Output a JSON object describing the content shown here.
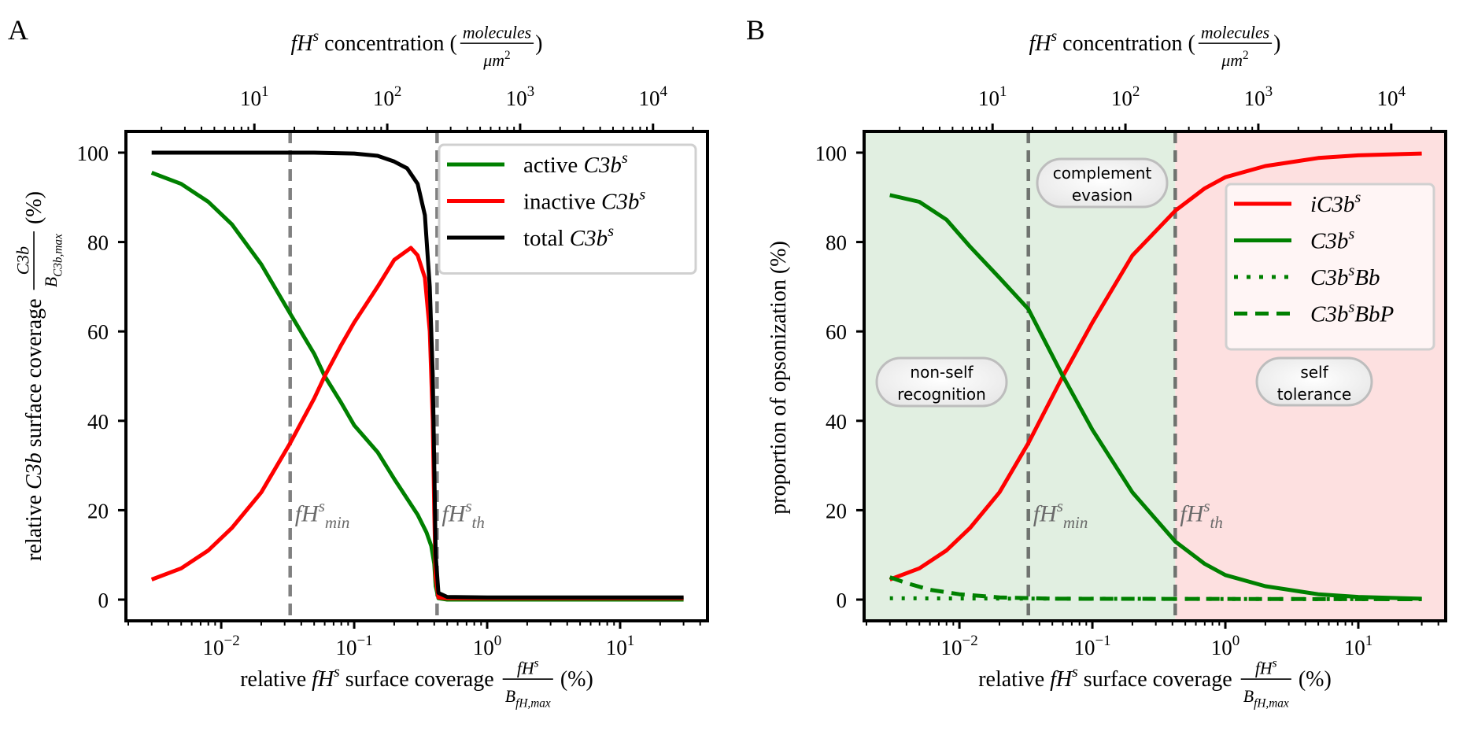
{
  "chart_data": [
    {
      "panel_label": "A",
      "type": "line",
      "xscale": "log",
      "xlim": [
        0.00192,
        45.4
      ],
      "ylim": [
        -4.75,
        104.75
      ],
      "top_xlim": [
        1.08,
        25700
      ],
      "grid": false,
      "legend_placement": "top-right",
      "top_xlabel": {
        "parts": [
          {
            "t": "fH",
            "i": true
          },
          {
            "t": "s",
            "i": true,
            "sup": true
          },
          {
            "t": " concentration ("
          }
        ],
        "frac": {
          "num": [
            {
              "t": "molecules",
              "i": true
            }
          ],
          "den": [
            {
              "t": "μm",
              "i": true
            },
            {
              "t": "2",
              "sup": true
            }
          ]
        },
        "after": [
          {
            "t": ")"
          }
        ]
      },
      "xlabel": {
        "parts": [
          {
            "t": "relative "
          },
          {
            "t": "fH",
            "i": true
          },
          {
            "t": "s",
            "i": true,
            "sup": true
          },
          {
            "t": " surface coverage "
          }
        ],
        "frac": {
          "num": [
            {
              "t": "fH",
              "i": true
            },
            {
              "t": "s",
              "i": true,
              "sup": true
            }
          ],
          "den": [
            {
              "t": "B",
              "i": true
            },
            {
              "t": "fH,max",
              "i": true,
              "sub": true
            }
          ]
        },
        "after": [
          {
            "t": " (%)"
          }
        ]
      },
      "ylabel": {
        "parts": [
          {
            "t": "relative "
          },
          {
            "t": "C3b",
            "i": true
          },
          {
            "t": " surface coverage "
          }
        ],
        "frac": {
          "num": [
            {
              "t": "C3b",
              "i": true
            }
          ],
          "den": [
            {
              "t": "B",
              "i": true
            },
            {
              "t": "C3b,max",
              "i": true,
              "sub": true
            }
          ]
        },
        "after": [
          {
            "t": " (%)"
          }
        ]
      },
      "xticks": [
        {
          "v": 0.01,
          "base": "10",
          "exp": "−2"
        },
        {
          "v": 0.1,
          "base": "10",
          "exp": "−1"
        },
        {
          "v": 1,
          "base": "10",
          "exp": "0"
        },
        {
          "v": 10,
          "base": "10",
          "exp": "1"
        }
      ],
      "top_xticks": [
        {
          "v": 10,
          "base": "10",
          "exp": "1"
        },
        {
          "v": 100,
          "base": "10",
          "exp": "2"
        },
        {
          "v": 1000,
          "base": "10",
          "exp": "3"
        },
        {
          "v": 10000,
          "base": "10",
          "exp": "4"
        }
      ],
      "yticks": [
        {
          "v": 0,
          "label": "0"
        },
        {
          "v": 20,
          "label": "20"
        },
        {
          "v": 40,
          "label": "40"
        },
        {
          "v": 60,
          "label": "60"
        },
        {
          "v": 80,
          "label": "80"
        },
        {
          "v": 100,
          "label": "100"
        }
      ],
      "vlines": [
        {
          "x": 0.033,
          "color": "#808080",
          "label": [
            {
              "t": "fH",
              "i": true
            },
            {
              "t": "s",
              "i": true,
              "sup": true
            },
            {
              "t": "min",
              "i": true,
              "sub": true
            }
          ]
        },
        {
          "x": 0.42,
          "color": "#808080",
          "label": [
            {
              "t": "fH",
              "i": true
            },
            {
              "t": "s",
              "i": true,
              "sup": true
            },
            {
              "t": "th",
              "i": true,
              "sub": true
            }
          ]
        }
      ],
      "regions": [],
      "region_labels": [],
      "series": [
        {
          "name": [
            {
              "t": "active "
            },
            {
              "t": "C3b",
              "i": true
            },
            {
              "t": "s",
              "i": true,
              "sup": true
            }
          ],
          "color": "#008000",
          "style": "solid",
          "x": [
            0.003,
            0.005,
            0.008,
            0.012,
            0.02,
            0.033,
            0.05,
            0.06,
            0.08,
            0.1,
            0.15,
            0.2,
            0.3,
            0.35,
            0.38,
            0.4,
            0.41,
            0.43,
            0.5,
            1,
            5,
            30
          ],
          "y": [
            95.5,
            93,
            89,
            84,
            75,
            64,
            55,
            50,
            44,
            39,
            33,
            27,
            19,
            15,
            12,
            8,
            3,
            0.3,
            0,
            0,
            0,
            0
          ]
        },
        {
          "name": [
            {
              "t": "inactive "
            },
            {
              "t": "C3b",
              "i": true
            },
            {
              "t": "s",
              "i": true,
              "sup": true
            }
          ],
          "color": "#ff0000",
          "style": "solid",
          "x": [
            0.003,
            0.005,
            0.008,
            0.012,
            0.02,
            0.033,
            0.05,
            0.06,
            0.08,
            0.1,
            0.15,
            0.2,
            0.267,
            0.3,
            0.34,
            0.37,
            0.39,
            0.4,
            0.41,
            0.43,
            0.5,
            30
          ],
          "y": [
            4.5,
            7,
            11,
            16,
            24,
            35,
            45,
            50,
            57,
            62,
            70,
            76,
            78.7,
            77,
            72,
            60,
            40,
            20,
            5,
            0.5,
            0.3,
            0.3
          ]
        },
        {
          "name": [
            {
              "t": "total "
            },
            {
              "t": "C3b",
              "i": true
            },
            {
              "t": "s",
              "i": true,
              "sup": true
            }
          ],
          "color": "#000000",
          "style": "solid",
          "x": [
            0.003,
            0.05,
            0.1,
            0.15,
            0.2,
            0.25,
            0.3,
            0.34,
            0.37,
            0.39,
            0.4,
            0.41,
            0.43,
            0.5,
            1,
            30
          ],
          "y": [
            100,
            100,
            99.8,
            99.3,
            98,
            96.5,
            93,
            86,
            70,
            50,
            30,
            10,
            1.5,
            0.6,
            0.5,
            0.5
          ]
        }
      ]
    },
    {
      "panel_label": "B",
      "type": "line",
      "xscale": "log",
      "xlim": [
        0.00192,
        45.4
      ],
      "ylim": [
        -4.75,
        104.75
      ],
      "top_xlim": [
        1.08,
        25700
      ],
      "grid": false,
      "legend_placement": "right",
      "top_xlabel": {
        "parts": [
          {
            "t": "fH",
            "i": true
          },
          {
            "t": "s",
            "i": true,
            "sup": true
          },
          {
            "t": " concentration ("
          }
        ],
        "frac": {
          "num": [
            {
              "t": "molecules",
              "i": true
            }
          ],
          "den": [
            {
              "t": "μm",
              "i": true
            },
            {
              "t": "2",
              "sup": true
            }
          ]
        },
        "after": [
          {
            "t": ")"
          }
        ]
      },
      "xlabel": {
        "parts": [
          {
            "t": "relative "
          },
          {
            "t": "fH",
            "i": true
          },
          {
            "t": "s",
            "i": true,
            "sup": true
          },
          {
            "t": " surface coverage "
          }
        ],
        "frac": {
          "num": [
            {
              "t": "fH",
              "i": true
            },
            {
              "t": "s",
              "i": true,
              "sup": true
            }
          ],
          "den": [
            {
              "t": "B",
              "i": true
            },
            {
              "t": "fH,max",
              "i": true,
              "sub": true
            }
          ]
        },
        "after": [
          {
            "t": " (%)"
          }
        ]
      },
      "ylabel": {
        "parts": [
          {
            "t": "proportion of opsonization (%)"
          }
        ]
      },
      "xticks": [
        {
          "v": 0.01,
          "base": "10",
          "exp": "−2"
        },
        {
          "v": 0.1,
          "base": "10",
          "exp": "−1"
        },
        {
          "v": 1,
          "base": "10",
          "exp": "0"
        },
        {
          "v": 10,
          "base": "10",
          "exp": "1"
        }
      ],
      "top_xticks": [
        {
          "v": 10,
          "base": "10",
          "exp": "1"
        },
        {
          "v": 100,
          "base": "10",
          "exp": "2"
        },
        {
          "v": 1000,
          "base": "10",
          "exp": "3"
        },
        {
          "v": 10000,
          "base": "10",
          "exp": "4"
        }
      ],
      "yticks": [
        {
          "v": 0,
          "label": "0"
        },
        {
          "v": 20,
          "label": "20"
        },
        {
          "v": 40,
          "label": "40"
        },
        {
          "v": 60,
          "label": "60"
        },
        {
          "v": 80,
          "label": "80"
        },
        {
          "v": 100,
          "label": "100"
        }
      ],
      "vlines": [
        {
          "x": 0.033,
          "color": "#6f736f",
          "label": [
            {
              "t": "fH",
              "i": true
            },
            {
              "t": "s",
              "i": true,
              "sup": true
            },
            {
              "t": "min",
              "i": true,
              "sub": true
            }
          ]
        },
        {
          "x": 0.42,
          "color": "#6f736f",
          "label": [
            {
              "t": "fH",
              "i": true
            },
            {
              "t": "s",
              "i": true,
              "sup": true
            },
            {
              "t": "th",
              "i": true,
              "sub": true
            }
          ]
        }
      ],
      "regions": [
        {
          "from": 0.00192,
          "to": 0.42,
          "color": "#e1efe1"
        },
        {
          "from": 0.42,
          "to": 45.4,
          "color": "#fde0e0"
        }
      ],
      "region_labels": [
        {
          "lines": [
            "non-self",
            "recognition"
          ]
        },
        {
          "lines": [
            "complement",
            "evasion"
          ]
        },
        {
          "lines": [
            "self",
            "tolerance"
          ]
        }
      ],
      "series": [
        {
          "name": [
            {
              "t": "iC3b",
              "i": true
            },
            {
              "t": "s",
              "i": true,
              "sup": true
            }
          ],
          "color": "#ff0000",
          "style": "solid",
          "x": [
            0.003,
            0.005,
            0.008,
            0.012,
            0.02,
            0.033,
            0.06,
            0.1,
            0.2,
            0.42,
            0.7,
            1,
            2,
            5,
            10,
            30
          ],
          "y": [
            4.5,
            7,
            11,
            16,
            24,
            35,
            50,
            62,
            77,
            87,
            92,
            94.5,
            97,
            98.8,
            99.4,
            99.8
          ]
        },
        {
          "name": [
            {
              "t": "C3b",
              "i": true
            },
            {
              "t": "s",
              "i": true,
              "sup": true
            }
          ],
          "color": "#008000",
          "style": "solid",
          "x": [
            0.003,
            0.005,
            0.008,
            0.012,
            0.02,
            0.033,
            0.06,
            0.1,
            0.2,
            0.42,
            0.7,
            1,
            2,
            5,
            10,
            30
          ],
          "y": [
            90.5,
            89,
            85,
            79,
            72,
            65,
            50,
            38,
            24,
            13,
            8,
            5.5,
            3,
            1.2,
            0.6,
            0.2
          ]
        },
        {
          "name": [
            {
              "t": "C3b",
              "i": true
            },
            {
              "t": "s",
              "i": true,
              "sup": true
            },
            {
              "t": "Bb",
              "i": true
            }
          ],
          "color": "#008000",
          "style": "dotted",
          "x": [
            0.003,
            0.01,
            0.1,
            1,
            30
          ],
          "y": [
            0.3,
            0.25,
            0.2,
            0.15,
            0.1
          ]
        },
        {
          "name": [
            {
              "t": "C3b",
              "i": true
            },
            {
              "t": "s",
              "i": true,
              "sup": true
            },
            {
              "t": "BbP",
              "i": true
            }
          ],
          "color": "#008000",
          "style": "dashed",
          "x": [
            0.003,
            0.004,
            0.006,
            0.01,
            0.02,
            0.05,
            30
          ],
          "y": [
            5,
            3.7,
            2.2,
            1.2,
            0.5,
            0.2,
            0.1
          ]
        }
      ]
    }
  ]
}
